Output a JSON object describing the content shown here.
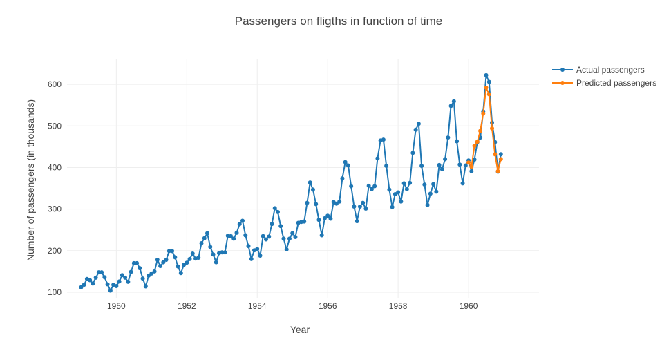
{
  "chart_data": {
    "type": "line",
    "title": "Passengers on fligths in function of time",
    "xlabel": "Year",
    "ylabel": "Number of passengers (in thousands)",
    "xlim": [
      1948.6,
      1962.0
    ],
    "ylim": [
      85,
      660
    ],
    "x_ticks": [
      1950,
      1952,
      1954,
      1956,
      1958,
      1960
    ],
    "x_tick_labels": [
      "1950",
      "1952",
      "1954",
      "1956",
      "1958",
      "1960"
    ],
    "y_ticks": [
      100,
      200,
      300,
      400,
      500,
      600
    ],
    "y_tick_labels": [
      "100",
      "200",
      "300",
      "400",
      "500",
      "600"
    ],
    "grid": true,
    "legend_position": "top-right",
    "series": [
      {
        "name": "Actual passengers",
        "color": "#1f77b4",
        "x_start": 1949.0,
        "x_step_months": 1,
        "values": [
          112,
          118,
          132,
          129,
          121,
          135,
          148,
          148,
          136,
          119,
          104,
          118,
          115,
          126,
          141,
          135,
          125,
          149,
          170,
          170,
          158,
          133,
          114,
          140,
          145,
          150,
          178,
          163,
          172,
          178,
          199,
          199,
          184,
          162,
          146,
          166,
          171,
          180,
          193,
          181,
          183,
          218,
          230,
          242,
          209,
          191,
          172,
          194,
          196,
          196,
          236,
          235,
          229,
          243,
          264,
          272,
          237,
          211,
          180,
          201,
          204,
          188,
          235,
          227,
          234,
          264,
          302,
          293,
          259,
          229,
          203,
          229,
          242,
          233,
          267,
          269,
          270,
          315,
          364,
          347,
          312,
          274,
          237,
          278,
          284,
          277,
          317,
          313,
          318,
          374,
          413,
          405,
          355,
          306,
          271,
          306,
          315,
          301,
          356,
          348,
          355,
          422,
          465,
          467,
          404,
          347,
          305,
          336,
          340,
          318,
          362,
          348,
          363,
          435,
          491,
          505,
          404,
          359,
          310,
          337,
          360,
          342,
          406,
          396,
          420,
          472,
          548,
          559,
          463,
          407,
          362,
          405,
          417,
          391,
          419,
          461,
          472,
          535,
          622,
          606,
          508,
          461,
          390,
          432
        ]
      },
      {
        "name": "Predicted passengers",
        "color": "#ff7f0e",
        "x_start": 1960.0,
        "x_step_months": 1,
        "values": [
          412,
          402,
          452,
          462,
          488,
          530,
          592,
          576,
          494,
          432,
          391,
          420
        ]
      }
    ]
  }
}
